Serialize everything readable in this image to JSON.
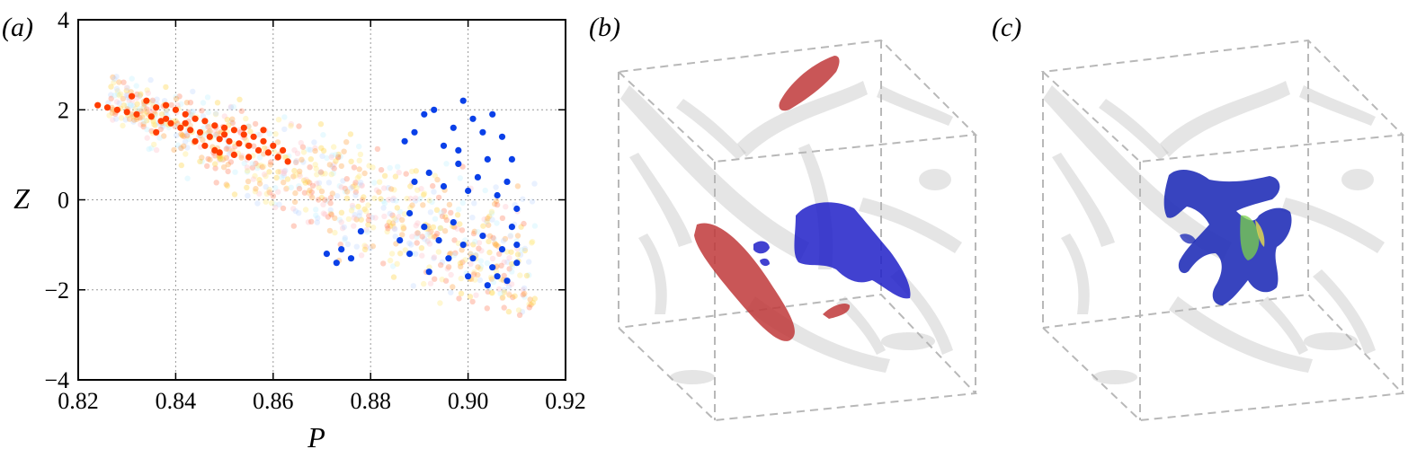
{
  "figure": {
    "panels": [
      {
        "label": "(a)",
        "label_letter": "a"
      },
      {
        "label": "(b)",
        "label_letter": "b"
      },
      {
        "label": "(c)",
        "label_letter": "c"
      }
    ]
  },
  "chart_data": {
    "type": "scatter",
    "title": "",
    "xlabel": "P",
    "ylabel": "Z",
    "xlim": [
      0.82,
      0.92
    ],
    "ylim": [
      -4,
      4
    ],
    "xticks": [
      "0.82",
      "0.84",
      "0.86",
      "0.88",
      "0.90",
      "0.92"
    ],
    "yticks": [
      "−4",
      "−2",
      "0",
      "2",
      "4"
    ],
    "grid": true,
    "series": [
      {
        "color": "#ff3d00",
        "points": [
          [
            0.824,
            2.1
          ],
          [
            0.826,
            2.05
          ],
          [
            0.828,
            2.0
          ],
          [
            0.83,
            1.95
          ],
          [
            0.831,
            2.3
          ],
          [
            0.832,
            1.9
          ],
          [
            0.834,
            2.2
          ],
          [
            0.835,
            1.85
          ],
          [
            0.836,
            2.05
          ],
          [
            0.837,
            1.75
          ],
          [
            0.838,
            2.1
          ],
          [
            0.839,
            1.7
          ],
          [
            0.84,
            2.0
          ],
          [
            0.841,
            1.6
          ],
          [
            0.842,
            1.9
          ],
          [
            0.843,
            1.55
          ],
          [
            0.844,
            1.8
          ],
          [
            0.845,
            1.5
          ],
          [
            0.846,
            1.75
          ],
          [
            0.847,
            1.4
          ],
          [
            0.848,
            1.65
          ],
          [
            0.849,
            1.35
          ],
          [
            0.85,
            1.6
          ],
          [
            0.851,
            1.3
          ],
          [
            0.852,
            1.55
          ],
          [
            0.853,
            1.25
          ],
          [
            0.854,
            1.45
          ],
          [
            0.855,
            1.2
          ],
          [
            0.856,
            1.4
          ],
          [
            0.857,
            1.1
          ],
          [
            0.858,
            1.3
          ],
          [
            0.859,
            1.05
          ],
          [
            0.86,
            1.2
          ],
          [
            0.861,
            0.95
          ],
          [
            0.862,
            1.1
          ],
          [
            0.863,
            0.85
          ],
          [
            0.846,
            1.2
          ],
          [
            0.848,
            1.1
          ],
          [
            0.852,
            1.0
          ],
          [
            0.855,
            0.95
          ],
          [
            0.844,
            1.3
          ],
          [
            0.85,
            1.45
          ],
          [
            0.854,
            1.6
          ],
          [
            0.858,
            1.55
          ],
          [
            0.842,
            1.7
          ],
          [
            0.838,
            1.8
          ],
          [
            0.836,
            1.5
          ],
          [
            0.849,
            1.05
          ]
        ]
      },
      {
        "color": "#0a40e8",
        "points": [
          [
            0.887,
            1.3
          ],
          [
            0.889,
            1.5
          ],
          [
            0.891,
            1.9
          ],
          [
            0.893,
            2.0
          ],
          [
            0.895,
            1.2
          ],
          [
            0.897,
            1.6
          ],
          [
            0.899,
            2.2
          ],
          [
            0.901,
            1.8
          ],
          [
            0.903,
            1.5
          ],
          [
            0.905,
            1.9
          ],
          [
            0.907,
            1.4
          ],
          [
            0.909,
            0.9
          ],
          [
            0.889,
            0.4
          ],
          [
            0.892,
            0.6
          ],
          [
            0.895,
            0.3
          ],
          [
            0.898,
            0.8
          ],
          [
            0.9,
            0.2
          ],
          [
            0.902,
            0.5
          ],
          [
            0.904,
            0.9
          ],
          [
            0.906,
            0.1
          ],
          [
            0.908,
            0.4
          ],
          [
            0.91,
            -0.2
          ],
          [
            0.888,
            -0.3
          ],
          [
            0.891,
            -0.6
          ],
          [
            0.894,
            -0.9
          ],
          [
            0.897,
            -0.5
          ],
          [
            0.899,
            -1.0
          ],
          [
            0.901,
            -1.3
          ],
          [
            0.903,
            -0.8
          ],
          [
            0.905,
            -1.5
          ],
          [
            0.907,
            -1.1
          ],
          [
            0.909,
            -0.6
          ],
          [
            0.91,
            -1.4
          ],
          [
            0.886,
            -0.9
          ],
          [
            0.888,
            -1.2
          ],
          [
            0.892,
            -1.6
          ],
          [
            0.896,
            -1.3
          ],
          [
            0.9,
            -1.7
          ],
          [
            0.904,
            -1.9
          ],
          [
            0.906,
            -1.7
          ],
          [
            0.874,
            -1.1
          ],
          [
            0.876,
            -1.3
          ],
          [
            0.873,
            -1.4
          ],
          [
            0.878,
            -0.7
          ],
          [
            0.871,
            -1.2
          ],
          [
            0.908,
            -1.8
          ],
          [
            0.91,
            -1.0
          ],
          [
            0.898,
            1.1
          ]
        ]
      }
    ],
    "background_cloud_colors": [
      "#ffa040",
      "#ffd23a",
      "#ff7a5a",
      "#ffc0c8",
      "#c0d8ff",
      "#bff0ff",
      "#ffe87a"
    ]
  }
}
